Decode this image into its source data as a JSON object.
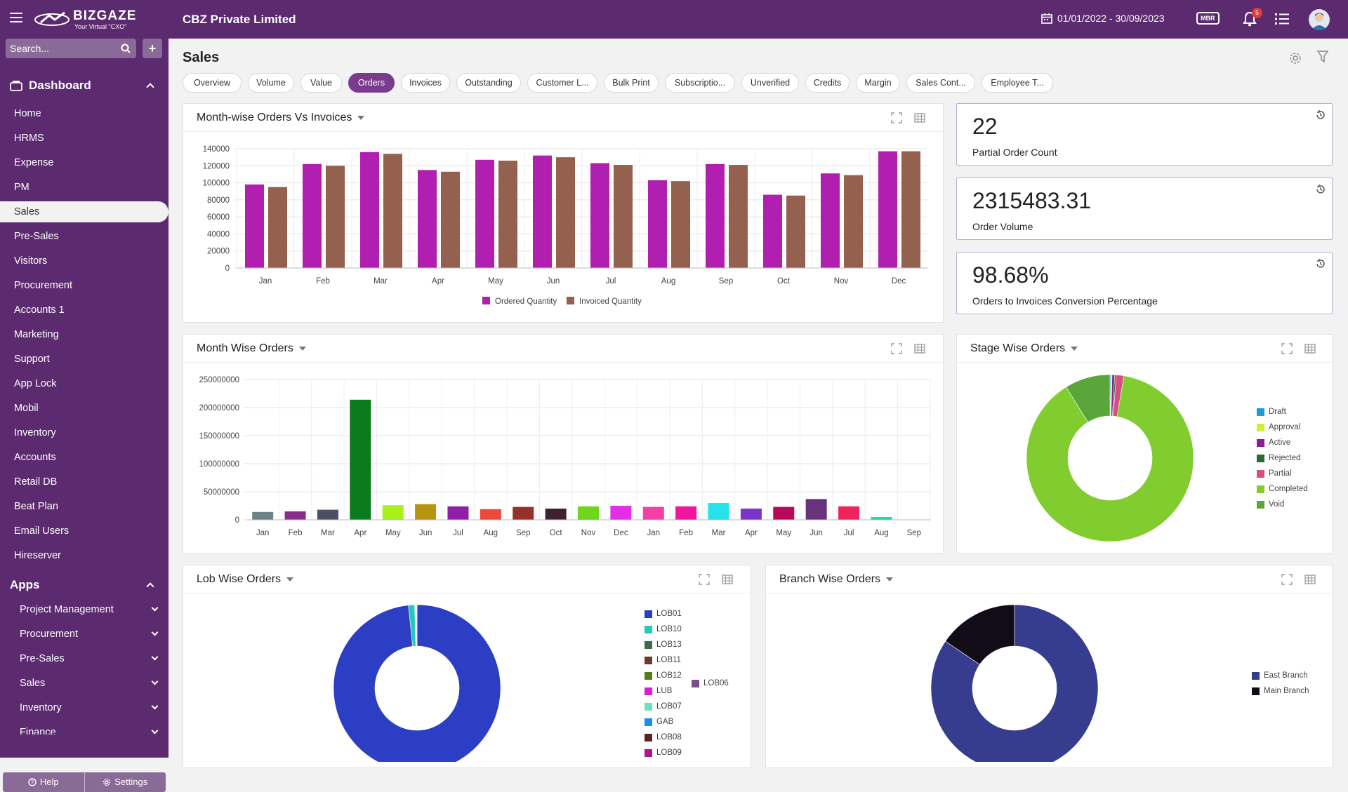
{
  "brand": {
    "name": "BIZGAZE",
    "tagline": "Your Virtual \"CXO\""
  },
  "header": {
    "company": "CBZ Private Limited",
    "date_range": "01/01/2022 - 30/09/2023",
    "mbr": "MBR",
    "notifications": "5"
  },
  "sidebar": {
    "search_placeholder": "Search...",
    "add_label": "+",
    "dashboard_label": "Dashboard",
    "items": [
      "Home",
      "HRMS",
      "Expense",
      "PM",
      "Sales",
      "Pre-Sales",
      "Visitors",
      "Procurement",
      "Accounts 1",
      "Marketing",
      "Support",
      "App Lock",
      "Mobil",
      "Inventory",
      "Accounts",
      "Retail DB",
      "Beat Plan",
      "Email Users",
      "Hireserver"
    ],
    "active_item": "Sales",
    "apps_label": "Apps",
    "apps": [
      "Project Management",
      "Procurement",
      "Pre-Sales",
      "Sales",
      "Inventory",
      "Finance"
    ],
    "help": "Help",
    "settings": "Settings"
  },
  "page": {
    "title": "Sales"
  },
  "tabs": [
    "Overview",
    "Volume",
    "Value",
    "Orders",
    "Invoices",
    "Outstanding",
    "Customer L...",
    "Bulk Print",
    "Subscriptio...",
    "Unverified",
    "Credits",
    "Margin",
    "Sales Cont...",
    "Employee T..."
  ],
  "active_tab": "Orders",
  "kpis": [
    {
      "value": "22",
      "label": "Partial Order Count"
    },
    {
      "value": "2315483.31",
      "label": "Order Volume"
    },
    {
      "value": "98.68%",
      "label": "Orders to Invoices Conversion Percentage"
    }
  ],
  "cards": {
    "month_orders_vs_invoices": "Month-wise Orders Vs Invoices",
    "month_wise_orders": "Month Wise Orders",
    "stage_wise_orders": "Stage Wise Orders",
    "lob_wise_orders": "Lob Wise Orders",
    "branch_wise_orders": "Branch Wise Orders"
  },
  "chart_data": [
    {
      "type": "bar",
      "title": "Month-wise Orders Vs Invoices",
      "categories": [
        "Jan",
        "Feb",
        "Mar",
        "Apr",
        "May",
        "Jun",
        "Jul",
        "Aug",
        "Sep",
        "Oct",
        "Nov",
        "Dec"
      ],
      "series": [
        {
          "name": "Ordered Quantity",
          "color": "#b01fb0",
          "values": [
            98000,
            122000,
            136000,
            115000,
            127000,
            132000,
            123000,
            103000,
            122000,
            86000,
            111000,
            137000
          ]
        },
        {
          "name": "Invoiced Quantity",
          "color": "#94614f",
          "values": [
            95000,
            120000,
            134000,
            113000,
            126000,
            130000,
            121000,
            102000,
            121000,
            85000,
            109000,
            137000
          ]
        }
      ],
      "ylim": [
        0,
        140000
      ],
      "yticks": [
        0,
        20000,
        40000,
        60000,
        80000,
        100000,
        120000,
        140000
      ],
      "legend": "bottom"
    },
    {
      "type": "bar",
      "title": "Month Wise Orders",
      "categories": [
        "Jan",
        "Feb",
        "Mar",
        "Apr",
        "May",
        "Jun",
        "Jul",
        "Aug",
        "Sep",
        "Oct",
        "Nov",
        "Dec",
        "Jan",
        "Feb",
        "Mar",
        "Apr",
        "May",
        "Jun",
        "Jul",
        "Aug",
        "Sep"
      ],
      "values": [
        14000000,
        15000000,
        18000000,
        214000000,
        26000000,
        28000000,
        24000000,
        19000000,
        23000000,
        20000000,
        24000000,
        25000000,
        23000000,
        24000000,
        30000000,
        20000000,
        23000000,
        37000000,
        24000000,
        5000000,
        0
      ],
      "colors": [
        "#6c8286",
        "#8a2d8a",
        "#4b5163",
        "#0a7a1e",
        "#a8f11a",
        "#b89510",
        "#8e1fa6",
        "#ec4a3a",
        "#96302a",
        "#3f2230",
        "#6fd61b",
        "#e32ee8",
        "#f33fa6",
        "#f3149e",
        "#27e3e9",
        "#7b34c9",
        "#b80b57",
        "#683378",
        "#f0245d",
        "#13ddaa",
        "#cccccc"
      ],
      "ylim": [
        0,
        250000000
      ],
      "yticks": [
        0,
        50000000,
        100000000,
        150000000,
        200000000,
        250000000
      ]
    },
    {
      "type": "pie",
      "title": "Stage Wise Orders",
      "categories": [
        "Draft",
        "Approval",
        "Active",
        "Rejected",
        "Partial",
        "Completed",
        "Void"
      ],
      "values": [
        0.2,
        0.2,
        0.5,
        0.3,
        1.5,
        88.5,
        8.8
      ],
      "colors": [
        "#1e9bd6",
        "#d4ec35",
        "#8b1e8e",
        "#2b6a2b",
        "#d5507e",
        "#81cc2e",
        "#5ba63a"
      ],
      "legend": "right"
    },
    {
      "type": "pie",
      "title": "Lob Wise Orders",
      "categories": [
        "LOB01",
        "LOB10",
        "LOB13",
        "LOB11",
        "LOB12",
        "LUB",
        "LOB07",
        "GAB",
        "LOB08",
        "LOB09",
        "LOB06"
      ],
      "values": [
        98.3,
        1.2,
        0.05,
        0.05,
        0.05,
        0.05,
        0.05,
        0.05,
        0.05,
        0.05,
        0.05
      ],
      "colors": [
        "#2c3fc4",
        "#27c8b9",
        "#3d6b4c",
        "#6b3b2b",
        "#5a7a1e",
        "#d81fd8",
        "#6fe0c1",
        "#1b8fe3",
        "#5a2424",
        "#b0138b",
        "#7a4d8e"
      ],
      "legend": "right"
    },
    {
      "type": "pie",
      "title": "Branch Wise Orders",
      "categories": [
        "East Branch",
        "Main Branch"
      ],
      "values": [
        84.5,
        15.5
      ],
      "colors": [
        "#363d8f",
        "#120b18"
      ],
      "legend": "right"
    }
  ]
}
